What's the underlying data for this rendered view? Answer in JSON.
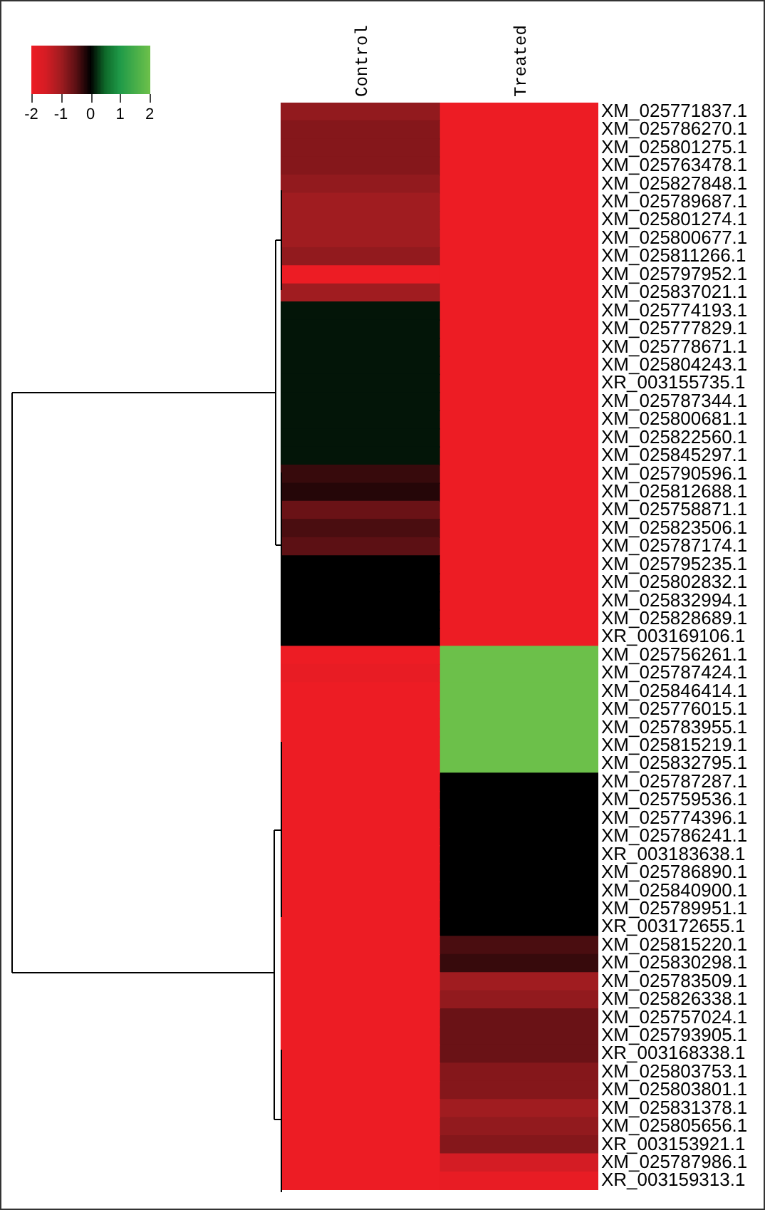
{
  "chart_data": {
    "type": "heatmap",
    "categories": [
      "Control",
      "Treated"
    ],
    "y_categories": [
      "XM_025771837.1",
      "XM_025786270.1",
      "XM_025801275.1",
      "XM_025763478.1",
      "XM_025827848.1",
      "XM_025789687.1",
      "XM_025801274.1",
      "XM_025800677.1",
      "XM_025811266.1",
      "XM_025797952.1",
      "XM_025837021.1",
      "XM_025774193.1",
      "XM_025777829.1",
      "XM_025778671.1",
      "XM_025804243.1",
      "XR_003155735.1",
      "XM_025787344.1",
      "XM_025800681.1",
      "XM_025822560.1",
      "XM_025845297.1",
      "XM_025790596.1",
      "XM_025812688.1",
      "XM_025758871.1",
      "XM_025823506.1",
      "XM_025787174.1",
      "XM_025795235.1",
      "XM_025802832.1",
      "XM_025832994.1",
      "XM_025828689.1",
      "XR_003169106.1",
      "XM_025756261.1",
      "XM_025787424.1",
      "XM_025846414.1",
      "XM_025776015.1",
      "XM_025783955.1",
      "XM_025815219.1",
      "XM_025832795.1",
      "XM_025787287.1",
      "XM_025759536.1",
      "XM_025774396.1",
      "XM_025786241.1",
      "XR_003183638.1",
      "XM_025786890.1",
      "XM_025840900.1",
      "XM_025789951.1",
      "XR_003172655.1",
      "XM_025815220.1",
      "XM_025830298.1",
      "XM_025783509.1",
      "XM_025826338.1",
      "XM_025757024.1",
      "XM_025793905.1",
      "XR_003168338.1",
      "XM_025803753.1",
      "XM_025803801.1",
      "XM_025831378.1",
      "XM_025805656.1",
      "XR_003153921.1",
      "XM_025787986.1",
      "XR_003159313.1"
    ],
    "cells": [
      [
        -0.9,
        -2
      ],
      [
        -0.8,
        -2
      ],
      [
        -0.8,
        -2
      ],
      [
        -0.8,
        -2
      ],
      [
        -0.9,
        -2
      ],
      [
        -1.0,
        -2
      ],
      [
        -1.0,
        -2
      ],
      [
        -1.0,
        -2
      ],
      [
        -0.9,
        -2
      ],
      [
        -2,
        -2
      ],
      [
        -1.0,
        -2
      ],
      [
        0.1,
        -2
      ],
      [
        0.1,
        -2
      ],
      [
        0.1,
        -2
      ],
      [
        0.1,
        -2
      ],
      [
        0.1,
        -2
      ],
      [
        0.1,
        -2
      ],
      [
        0.1,
        -2
      ],
      [
        0.1,
        -2
      ],
      [
        0.1,
        -2
      ],
      [
        -0.3,
        -2
      ],
      [
        -0.2,
        -2
      ],
      [
        -0.6,
        -2
      ],
      [
        -0.4,
        -2
      ],
      [
        -0.5,
        -2
      ],
      [
        0,
        -2
      ],
      [
        0,
        -2
      ],
      [
        0,
        -2
      ],
      [
        0,
        -2
      ],
      [
        0,
        -2
      ],
      [
        -2,
        2
      ],
      [
        -1.9,
        2
      ],
      [
        -2,
        2
      ],
      [
        -2,
        2
      ],
      [
        -2,
        2
      ],
      [
        -2,
        2
      ],
      [
        -2,
        2
      ],
      [
        -2,
        0
      ],
      [
        -2,
        0
      ],
      [
        -2,
        0
      ],
      [
        -2,
        0
      ],
      [
        -2,
        0
      ],
      [
        -2,
        0
      ],
      [
        -2,
        0
      ],
      [
        -2,
        0
      ],
      [
        -2,
        0
      ],
      [
        -2,
        -0.4
      ],
      [
        -2,
        -0.3
      ],
      [
        -2,
        -1.0
      ],
      [
        -2,
        -0.9
      ],
      [
        -2,
        -0.6
      ],
      [
        -2,
        -0.6
      ],
      [
        -2,
        -0.6
      ],
      [
        -2,
        -0.8
      ],
      [
        -2,
        -0.8
      ],
      [
        -2,
        -1.0
      ],
      [
        -2,
        -0.9
      ],
      [
        -2,
        -0.8
      ],
      [
        -2,
        -1.5
      ],
      [
        -2,
        -1.9
      ]
    ],
    "clim": [
      -2,
      2
    ],
    "cticks": [
      -2,
      -1,
      0,
      1,
      2
    ]
  }
}
